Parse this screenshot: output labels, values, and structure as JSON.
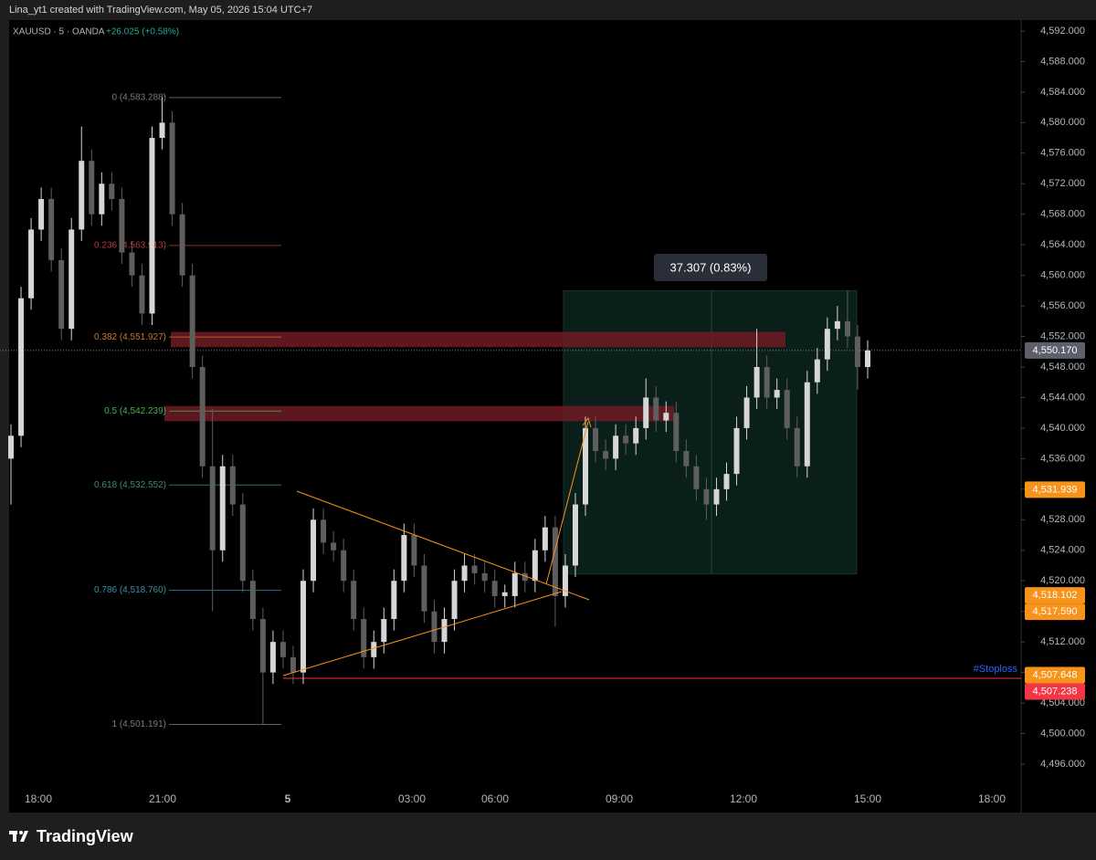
{
  "header": {
    "caption": "Lina_yt1 created with TradingView.com, May 05, 2026 15:04 UTC+7"
  },
  "chart_data": {
    "type": "candlestick",
    "symbol": "XAUUSD · 5 · OANDA",
    "change": "+26.025 (+0.58%)",
    "up_color": "#d6d6d6",
    "down_color": "#5e5e5e",
    "candles": [
      [
        4536,
        4540.5,
        4530,
        4539
      ],
      [
        4539,
        4558.5,
        4537.5,
        4557
      ],
      [
        4557,
        4567.5,
        4555.5,
        4566
      ],
      [
        4566,
        4571.5,
        4564.5,
        4570
      ],
      [
        4570,
        4571.5,
        4560.5,
        4562
      ],
      [
        4562,
        4563.5,
        4551.5,
        4553
      ],
      [
        4553,
        4567.5,
        4551.5,
        4566
      ],
      [
        4566,
        4579.5,
        4564.5,
        4575
      ],
      [
        4575,
        4576.5,
        4566.5,
        4568
      ],
      [
        4568,
        4573.5,
        4566.5,
        4572
      ],
      [
        4572,
        4573.5,
        4568.5,
        4570
      ],
      [
        4570,
        4571.5,
        4561.5,
        4563
      ],
      [
        4563,
        4564.5,
        4558.5,
        4560
      ],
      [
        4560,
        4561.5,
        4553.5,
        4555
      ],
      [
        4555,
        4579.5,
        4553.5,
        4578
      ],
      [
        4578,
        4583.3,
        4576.5,
        4580
      ],
      [
        4580,
        4581.5,
        4566.5,
        4568
      ],
      [
        4568,
        4569.5,
        4558.5,
        4560
      ],
      [
        4560,
        4561.5,
        4546.5,
        4548
      ],
      [
        4548,
        4549.5,
        4533.5,
        4535
      ],
      [
        4535,
        4542.5,
        4516,
        4524
      ],
      [
        4524,
        4536.5,
        4522.5,
        4535
      ],
      [
        4535,
        4536.5,
        4528.5,
        4530
      ],
      [
        4530,
        4531.5,
        4518.5,
        4520
      ],
      [
        4520,
        4521.5,
        4513.5,
        4515
      ],
      [
        4515,
        4516.5,
        4501.2,
        4508
      ],
      [
        4508,
        4513.5,
        4506.5,
        4512
      ],
      [
        4512,
        4513.5,
        4508.5,
        4510
      ],
      [
        4510,
        4511.5,
        4506.5,
        4508
      ],
      [
        4508,
        4521.5,
        4506.5,
        4520
      ],
      [
        4520,
        4529.5,
        4518.5,
        4528
      ],
      [
        4528,
        4529.5,
        4523.5,
        4525
      ],
      [
        4525,
        4526.5,
        4522.5,
        4524
      ],
      [
        4524,
        4525.5,
        4518.5,
        4520
      ],
      [
        4520,
        4521.5,
        4513.5,
        4515
      ],
      [
        4515,
        4516.5,
        4508.5,
        4510
      ],
      [
        4510,
        4513.5,
        4508.5,
        4512
      ],
      [
        4512,
        4516.5,
        4510.5,
        4515
      ],
      [
        4515,
        4521.5,
        4513.5,
        4520
      ],
      [
        4520,
        4527.5,
        4518.5,
        4526
      ],
      [
        4526,
        4527.5,
        4520.5,
        4522
      ],
      [
        4522,
        4523.5,
        4514.5,
        4516
      ],
      [
        4516,
        4517.5,
        4510.5,
        4512
      ],
      [
        4512,
        4516.5,
        4510.5,
        4515
      ],
      [
        4515,
        4521.5,
        4513.5,
        4520
      ],
      [
        4520,
        4523.5,
        4518.5,
        4522
      ],
      [
        4522,
        4523.5,
        4519.5,
        4521
      ],
      [
        4521,
        4522.5,
        4518.5,
        4520
      ],
      [
        4520,
        4521.5,
        4516.5,
        4518
      ],
      [
        4518,
        4519.5,
        4516.5,
        4518.5
      ],
      [
        4518,
        4522.5,
        4516.5,
        4521
      ],
      [
        4521,
        4522.5,
        4518.5,
        4520
      ],
      [
        4520,
        4525.5,
        4518.5,
        4524
      ],
      [
        4524,
        4528.5,
        4522.5,
        4527
      ],
      [
        4527,
        4528.5,
        4514,
        4518
      ],
      [
        4518,
        4523.5,
        4516.5,
        4522
      ],
      [
        4522,
        4531.5,
        4520.5,
        4530
      ],
      [
        4530,
        4541.5,
        4528.5,
        4540
      ],
      [
        4540,
        4541.5,
        4535.5,
        4537
      ],
      [
        4537,
        4538.5,
        4534.5,
        4536
      ],
      [
        4536,
        4540.5,
        4534.5,
        4539
      ],
      [
        4539,
        4540.5,
        4536.5,
        4538
      ],
      [
        4538,
        4541.5,
        4536.5,
        4540
      ],
      [
        4540,
        4546.5,
        4538.5,
        4544
      ],
      [
        4544,
        4545.5,
        4539.5,
        4541
      ],
      [
        4541,
        4543.5,
        4539.5,
        4542
      ],
      [
        4542,
        4543.5,
        4535.5,
        4537
      ],
      [
        4537,
        4538.5,
        4533.5,
        4535
      ],
      [
        4535,
        4536.5,
        4530.5,
        4532
      ],
      [
        4532,
        4533.5,
        4528,
        4530
      ],
      [
        4530,
        4533.5,
        4528.5,
        4532
      ],
      [
        4532,
        4535.5,
        4530.5,
        4534
      ],
      [
        4534,
        4541.5,
        4532.5,
        4540
      ],
      [
        4540,
        4545.5,
        4538.5,
        4544
      ],
      [
        4544,
        4553,
        4542.5,
        4548
      ],
      [
        4548,
        4549.5,
        4542.5,
        4544
      ],
      [
        4544,
        4546.5,
        4542.5,
        4545
      ],
      [
        4545,
        4546.5,
        4538.5,
        4540
      ],
      [
        4540,
        4541.5,
        4533.5,
        4535
      ],
      [
        4535,
        4547.5,
        4533.5,
        4546
      ],
      [
        4546,
        4550.5,
        4544.5,
        4549
      ],
      [
        4549,
        4554.5,
        4547.5,
        4553
      ],
      [
        4553,
        4556,
        4551.5,
        4554
      ],
      [
        4554,
        4558,
        4550.5,
        4552
      ],
      [
        4552,
        4553.5,
        4545,
        4548
      ],
      [
        4548,
        4551.5,
        4546.5,
        4550.17
      ]
    ],
    "ylim": [
      4489.66,
      4593.43
    ],
    "yticks": [
      {
        "value": 4496,
        "label": "4,496.000"
      },
      {
        "value": 4500,
        "label": "4,500.000"
      },
      {
        "value": 4504,
        "label": "4,504.000"
      },
      {
        "value": 4508,
        "label": "4,508.000"
      },
      {
        "value": 4512,
        "label": "4,512.000"
      },
      {
        "value": 4516,
        "label": "4,516.000"
      },
      {
        "value": 4520,
        "label": "4,520.000"
      },
      {
        "value": 4524,
        "label": "4,524.000"
      },
      {
        "value": 4528,
        "label": "4,528.000"
      },
      {
        "value": 4532,
        "label": "4,532.000"
      },
      {
        "value": 4536,
        "label": "4,536.000"
      },
      {
        "value": 4540,
        "label": "4,540.000"
      },
      {
        "value": 4544,
        "label": "4,544.000"
      },
      {
        "value": 4548,
        "label": "4,548.000"
      },
      {
        "value": 4552,
        "label": "4,552.000"
      },
      {
        "value": 4556,
        "label": "4,556.000"
      },
      {
        "value": 4560,
        "label": "4,560.000"
      },
      {
        "value": 4564,
        "label": "4,564.000"
      },
      {
        "value": 4568,
        "label": "4,568.000"
      },
      {
        "value": 4572,
        "label": "4,572.000"
      },
      {
        "value": 4576,
        "label": "4,576.000"
      },
      {
        "value": 4580,
        "label": "4,580.000"
      },
      {
        "value": 4584,
        "label": "4,584.000"
      },
      {
        "value": 4588,
        "label": "4,588.000"
      },
      {
        "value": 4592,
        "label": "4,592.000"
      }
    ],
    "xticks": [
      "18:00",
      "21:00",
      "5",
      "03:00",
      "06:00",
      "09:00",
      "12:00",
      "15:00",
      "18:00"
    ],
    "price_labels": [
      {
        "value": 4550.17,
        "label": "4,550.170",
        "color": "#5d606b"
      },
      {
        "value": 4531.939,
        "label": "4,531.939",
        "color": "#f7931a"
      },
      {
        "value": 4518.102,
        "label": "4,518.102",
        "color": "#f7931a"
      },
      {
        "value": 4517.59,
        "label": "4,517.590",
        "color": "#f7931a"
      },
      {
        "value": 4507.648,
        "label": "4,507.648",
        "color": "#f7931a"
      },
      {
        "value": 4507.238,
        "label": "4,507.238",
        "color": "#f23645"
      }
    ],
    "fib": [
      {
        "price": 4583.288,
        "label": "0 (4,583.288)",
        "color": "#787b86"
      },
      {
        "price": 4563.913,
        "label": "0.236 (4,563.913)",
        "color": "#b23a3a"
      },
      {
        "price": 4551.927,
        "label": "0.382 (4,551.927)",
        "color": "#c9752a"
      },
      {
        "price": 4542.239,
        "label": "0.5 (4,542.239)",
        "color": "#4caf50"
      },
      {
        "price": 4532.552,
        "label": "0.618 (4,532.552)",
        "color": "#3d8a7a"
      },
      {
        "price": 4518.76,
        "label": "0.786 (4,518.760)",
        "color": "#3a8fa3"
      },
      {
        "price": 4501.191,
        "label": "1 (4,501.191)",
        "color": "#787b86"
      }
    ],
    "zones": [
      [
        4552.6,
        4550.6
      ],
      [
        4542.9,
        4540.9
      ]
    ],
    "position": {
      "top": 4558,
      "bottom": 4520.9,
      "label": "37.307 (0.83%)"
    },
    "stoploss": {
      "price": 4507.238,
      "label": "#Stoploss"
    }
  },
  "footer": {
    "brand": "TradingView"
  }
}
